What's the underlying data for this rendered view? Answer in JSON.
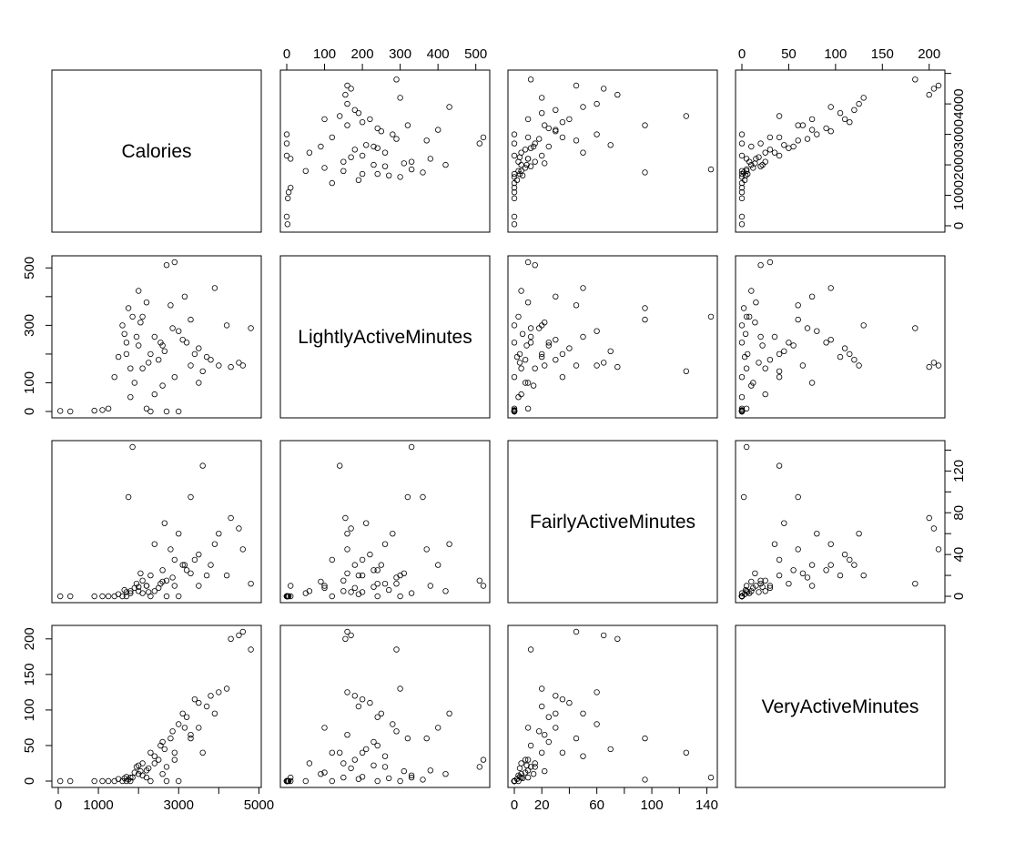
{
  "chart_data": {
    "type": "scatter",
    "title": "",
    "variables": [
      {
        "name": "Calories",
        "range": [
          0,
          4900
        ],
        "ticks": [
          0,
          1000,
          2000,
          3000,
          4000,
          5000
        ],
        "tick_labels_bottom": [
          "0",
          "1000",
          "3000",
          "5000"
        ],
        "tick_labels_right": [
          "0",
          "1000",
          "2000",
          "3000",
          "4000"
        ]
      },
      {
        "name": "LightlyActiveMinutes",
        "range": [
          0,
          520
        ],
        "ticks": [
          0,
          100,
          200,
          300,
          400,
          500
        ],
        "tick_labels_top": [
          "0",
          "100",
          "200",
          "300",
          "400",
          "500"
        ],
        "tick_labels_left": [
          "0",
          "100",
          "300",
          "500"
        ]
      },
      {
        "name": "FairlyActiveMinutes",
        "range": [
          0,
          143
        ],
        "ticks": [
          0,
          20,
          40,
          60,
          80,
          100,
          120,
          140
        ],
        "tick_labels_bottom": [
          "0",
          "20",
          "60",
          "100",
          "140"
        ],
        "tick_labels_right": [
          "0",
          "40",
          "80",
          "120"
        ]
      },
      {
        "name": "VeryActiveMinutes",
        "range": [
          0,
          210
        ],
        "ticks": [
          0,
          50,
          100,
          150,
          200
        ],
        "tick_labels_top": [
          "0",
          "50",
          "100",
          "150",
          "200"
        ],
        "tick_labels_left": [
          "0",
          "50",
          "100",
          "150",
          "200"
        ]
      }
    ],
    "point_style": "open circle",
    "observations": [
      [
        1800,
        150,
        5,
        5
      ],
      [
        1950,
        260,
        12,
        20
      ],
      [
        2100,
        330,
        3,
        8
      ],
      [
        2300,
        200,
        20,
        40
      ],
      [
        2500,
        180,
        8,
        30
      ],
      [
        1700,
        240,
        0,
        0
      ],
      [
        2600,
        230,
        25,
        55
      ],
      [
        2850,
        290,
        18,
        70
      ],
      [
        3100,
        250,
        30,
        95
      ],
      [
        3500,
        220,
        40,
        110
      ],
      [
        3800,
        180,
        30,
        120
      ],
      [
        4000,
        160,
        60,
        125
      ],
      [
        4300,
        155,
        75,
        200
      ],
      [
        4500,
        170,
        65,
        205
      ],
      [
        4600,
        160,
        45,
        210
      ],
      [
        2200,
        380,
        10,
        15
      ],
      [
        2000,
        420,
        5,
        10
      ],
      [
        1600,
        300,
        0,
        0
      ],
      [
        1400,
        120,
        0,
        0
      ],
      [
        1500,
        190,
        2,
        3
      ],
      [
        2700,
        510,
        15,
        20
      ],
      [
        2900,
        520,
        10,
        30
      ],
      [
        3300,
        320,
        95,
        60
      ],
      [
        3600,
        140,
        125,
        40
      ],
      [
        1750,
        360,
        95,
        2
      ],
      [
        1850,
        330,
        143,
        5
      ],
      [
        2400,
        260,
        50,
        35
      ],
      [
        2650,
        210,
        70,
        45
      ],
      [
        3000,
        280,
        60,
        80
      ],
      [
        3200,
        240,
        25,
        90
      ],
      [
        3400,
        200,
        35,
        115
      ],
      [
        3700,
        190,
        20,
        105
      ],
      [
        2100,
        150,
        15,
        25
      ],
      [
        1900,
        100,
        8,
        12
      ],
      [
        2250,
        170,
        4,
        18
      ],
      [
        2550,
        240,
        12,
        50
      ],
      [
        1650,
        270,
        6,
        4
      ],
      [
        2050,
        310,
        22,
        14
      ],
      [
        2800,
        370,
        45,
        60
      ],
      [
        3150,
        400,
        30,
        75
      ],
      [
        3900,
        430,
        50,
        95
      ],
      [
        4200,
        300,
        20,
        130
      ],
      [
        4800,
        290,
        12,
        185
      ],
      [
        1250,
        10,
        0,
        0
      ],
      [
        1100,
        5,
        0,
        0
      ],
      [
        900,
        3,
        0,
        0
      ],
      [
        300,
        0,
        0,
        0
      ],
      [
        50,
        2,
        0,
        0
      ],
      [
        3000,
        0,
        0,
        0
      ],
      [
        2700,
        0,
        0,
        0
      ],
      [
        2300,
        0,
        0,
        0
      ],
      [
        2200,
        10,
        10,
        5
      ],
      [
        2400,
        60,
        5,
        25
      ],
      [
        2600,
        90,
        14,
        10
      ],
      [
        1800,
        50,
        3,
        0
      ],
      [
        2900,
        120,
        35,
        40
      ],
      [
        3300,
        160,
        22,
        65
      ],
      [
        3500,
        100,
        10,
        75
      ],
      [
        1700,
        200,
        4,
        6
      ],
      [
        2000,
        230,
        9,
        22
      ]
    ]
  }
}
